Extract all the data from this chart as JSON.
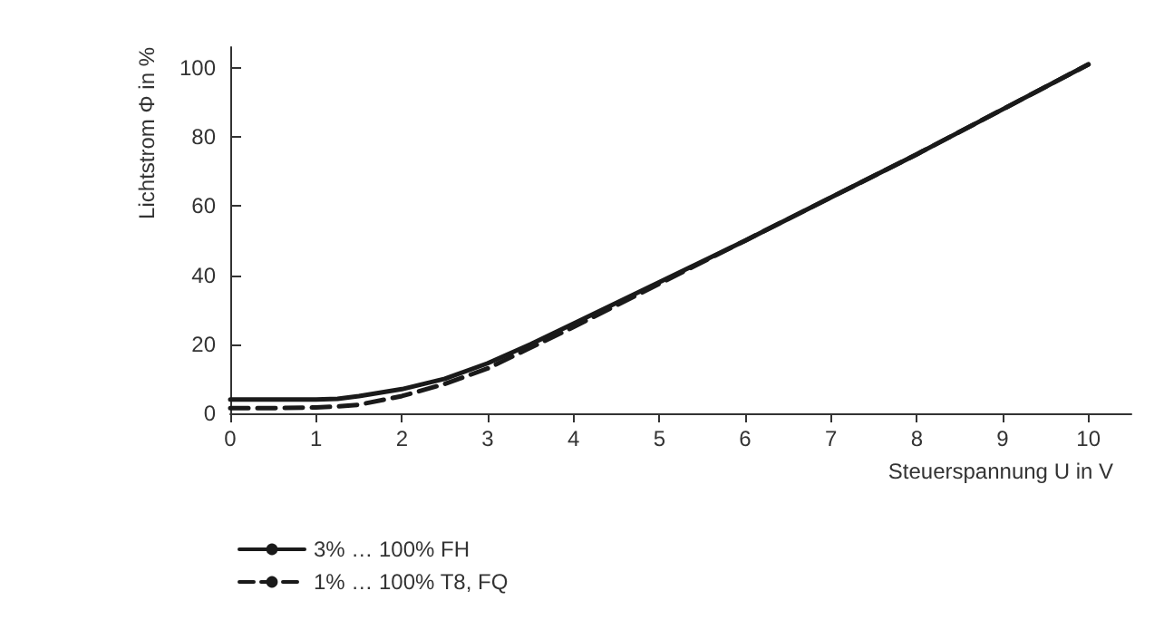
{
  "chart_data": {
    "type": "line",
    "xlabel": "Steuerspannung U in V",
    "ylabel": "Lichtstrom Φ in %",
    "x": [
      0,
      0.5,
      1,
      1.25,
      1.5,
      2,
      2.5,
      3,
      3.5,
      4,
      5,
      6,
      7,
      8,
      9,
      10
    ],
    "series": [
      {
        "name": "3% … 100% FH",
        "color": "#1a1a1a",
        "line_style": "solid",
        "values": [
          4,
          4,
          4,
          4.2,
          5,
          7,
          10,
          14.5,
          20,
          26,
          38,
          50,
          62.5,
          75,
          88,
          101
        ]
      },
      {
        "name": "1% … 100% T8, FQ",
        "color": "#1a1a1a",
        "line_style": "dashed",
        "values": [
          1.5,
          1.5,
          1.7,
          2,
          2.5,
          5,
          8.5,
          13,
          19,
          25,
          37.5,
          50,
          62.5,
          75,
          88,
          101
        ]
      }
    ],
    "xlim": [
      0,
      10.5
    ],
    "xticks": [
      0,
      1,
      2,
      3,
      4,
      5,
      6,
      7,
      8,
      9,
      10
    ],
    "ylim": [
      0,
      106
    ],
    "yticks": [
      0,
      20,
      40,
      60,
      80,
      100
    ],
    "grid": false,
    "legend": "bottom left",
    "marker": "none"
  }
}
